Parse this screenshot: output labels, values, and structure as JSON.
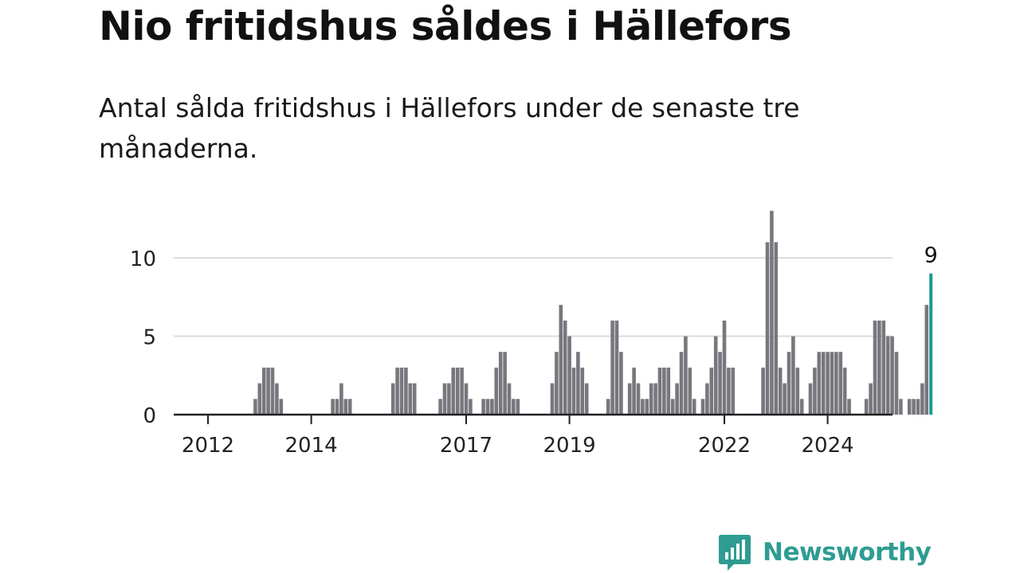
{
  "header": {
    "title": "Nio fritidshus såldes i Hällefors",
    "subtitle": "Antal sålda fritidshus i Hällefors under de senaste tre månaderna."
  },
  "brand": {
    "name": "Newsworthy",
    "color": "#2f9c92",
    "icon": "bar-chart-speech-bubble-icon"
  },
  "chart_data": {
    "type": "bar",
    "x_start": "2012-01",
    "x_step": "month",
    "ylim": [
      0,
      13
    ],
    "yticks": [
      0,
      5,
      10
    ],
    "xticks": [
      {
        "label": "2012",
        "date": "2012-01"
      },
      {
        "label": "2014",
        "date": "2014-01"
      },
      {
        "label": "2017",
        "date": "2017-01"
      },
      {
        "label": "2019",
        "date": "2019-01"
      },
      {
        "label": "2022",
        "date": "2022-01"
      },
      {
        "label": "2024",
        "date": "2024-01"
      }
    ],
    "grid": true,
    "bar_color": "#77777e",
    "highlight_color": "#1b9a8f",
    "highlight_label": "9",
    "values": [
      0,
      0,
      0,
      0,
      0,
      0,
      0,
      0,
      0,
      0,
      0,
      1,
      2,
      3,
      3,
      3,
      2,
      1,
      0,
      0,
      0,
      0,
      0,
      0,
      0,
      0,
      0,
      0,
      0,
      1,
      1,
      2,
      1,
      1,
      0,
      0,
      0,
      0,
      0,
      0,
      0,
      0,
      0,
      2,
      3,
      3,
      3,
      2,
      2,
      0,
      0,
      0,
      0,
      0,
      1,
      2,
      2,
      3,
      3,
      3,
      2,
      1,
      0,
      0,
      1,
      1,
      1,
      3,
      4,
      4,
      2,
      1,
      1,
      0,
      0,
      0,
      0,
      0,
      0,
      0,
      2,
      4,
      7,
      6,
      5,
      3,
      4,
      3,
      2,
      0,
      0,
      0,
      0,
      1,
      6,
      6,
      4,
      0,
      2,
      3,
      2,
      1,
      1,
      2,
      2,
      3,
      3,
      3,
      1,
      2,
      4,
      5,
      3,
      1,
      0,
      1,
      2,
      3,
      5,
      4,
      6,
      3,
      3,
      0,
      0,
      0,
      0,
      0,
      0,
      3,
      11,
      13,
      11,
      3,
      2,
      4,
      5,
      3,
      1,
      0,
      2,
      3,
      4,
      4,
      4,
      4,
      4,
      4,
      3,
      1,
      0,
      0,
      0,
      1,
      2,
      6,
      6,
      6,
      5,
      5,
      4,
      1,
      0,
      1,
      1,
      1,
      2,
      7,
      9
    ]
  }
}
